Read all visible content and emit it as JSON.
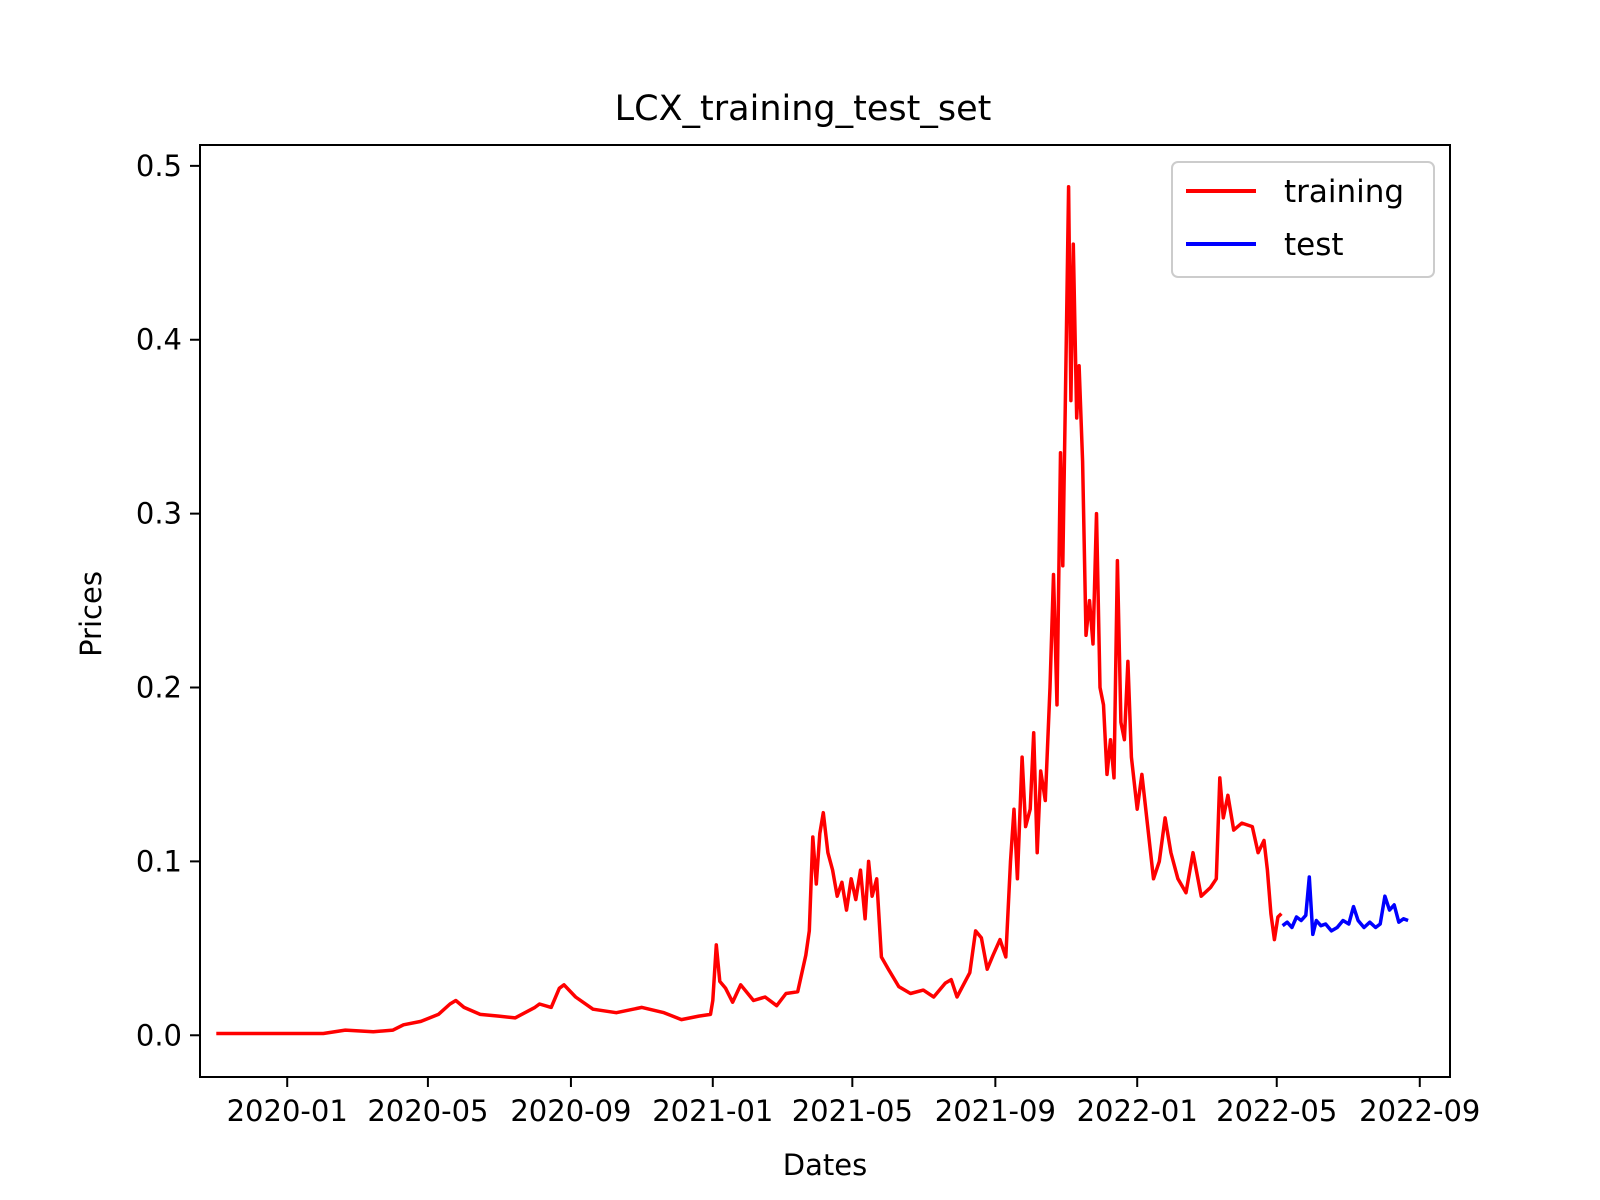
{
  "chart_data": {
    "type": "line",
    "title": "LCX_training_test_set",
    "xlabel": "Dates",
    "ylabel": "Prices",
    "xlim": [
      "2019-10-18",
      "2022-09-27"
    ],
    "ylim": [
      -0.024,
      0.512
    ],
    "grid": false,
    "legend_position": "top-right",
    "x_ticks": [
      {
        "date": "2020-01-01",
        "label": "2020-01"
      },
      {
        "date": "2020-05-01",
        "label": "2020-05"
      },
      {
        "date": "2020-09-01",
        "label": "2020-09"
      },
      {
        "date": "2021-01-01",
        "label": "2021-01"
      },
      {
        "date": "2021-05-01",
        "label": "2021-05"
      },
      {
        "date": "2021-09-01",
        "label": "2021-09"
      },
      {
        "date": "2022-01-01",
        "label": "2022-01"
      },
      {
        "date": "2022-05-01",
        "label": "2022-05"
      },
      {
        "date": "2022-09-01",
        "label": "2022-09"
      }
    ],
    "y_ticks": [
      {
        "value": 0.0,
        "label": "0.0"
      },
      {
        "value": 0.1,
        "label": "0.1"
      },
      {
        "value": 0.2,
        "label": "0.2"
      },
      {
        "value": 0.3,
        "label": "0.3"
      },
      {
        "value": 0.4,
        "label": "0.4"
      },
      {
        "value": 0.5,
        "label": "0.5"
      }
    ],
    "series": [
      {
        "name": "training",
        "color": "#ff0000",
        "points": [
          [
            "2019-11-01",
            0.001
          ],
          [
            "2019-12-01",
            0.001
          ],
          [
            "2020-01-01",
            0.001
          ],
          [
            "2020-02-01",
            0.001
          ],
          [
            "2020-02-20",
            0.003
          ],
          [
            "2020-03-15",
            0.002
          ],
          [
            "2020-04-01",
            0.003
          ],
          [
            "2020-04-10",
            0.006
          ],
          [
            "2020-04-25",
            0.008
          ],
          [
            "2020-05-10",
            0.012
          ],
          [
            "2020-05-20",
            0.018
          ],
          [
            "2020-05-25",
            0.02
          ],
          [
            "2020-06-01",
            0.016
          ],
          [
            "2020-06-15",
            0.012
          ],
          [
            "2020-07-01",
            0.011
          ],
          [
            "2020-07-15",
            0.01
          ],
          [
            "2020-08-01",
            0.016
          ],
          [
            "2020-08-05",
            0.018
          ],
          [
            "2020-08-15",
            0.016
          ],
          [
            "2020-08-22",
            0.027
          ],
          [
            "2020-08-26",
            0.029
          ],
          [
            "2020-09-05",
            0.022
          ],
          [
            "2020-09-20",
            0.015
          ],
          [
            "2020-10-10",
            0.013
          ],
          [
            "2020-11-01",
            0.016
          ],
          [
            "2020-11-20",
            0.013
          ],
          [
            "2020-12-05",
            0.009
          ],
          [
            "2020-12-20",
            0.011
          ],
          [
            "2020-12-30",
            0.012
          ],
          [
            "2021-01-01",
            0.02
          ],
          [
            "2021-01-04",
            0.052
          ],
          [
            "2021-01-07",
            0.031
          ],
          [
            "2021-01-12",
            0.027
          ],
          [
            "2021-01-18",
            0.019
          ],
          [
            "2021-01-25",
            0.029
          ],
          [
            "2021-02-05",
            0.02
          ],
          [
            "2021-02-15",
            0.022
          ],
          [
            "2021-02-25",
            0.017
          ],
          [
            "2021-03-05",
            0.024
          ],
          [
            "2021-03-15",
            0.025
          ],
          [
            "2021-03-22",
            0.046
          ],
          [
            "2021-03-25",
            0.06
          ],
          [
            "2021-03-28",
            0.114
          ],
          [
            "2021-03-31",
            0.087
          ],
          [
            "2021-04-03",
            0.116
          ],
          [
            "2021-04-06",
            0.128
          ],
          [
            "2021-04-10",
            0.105
          ],
          [
            "2021-04-14",
            0.095
          ],
          [
            "2021-04-18",
            0.08
          ],
          [
            "2021-04-22",
            0.088
          ],
          [
            "2021-04-26",
            0.072
          ],
          [
            "2021-04-30",
            0.09
          ],
          [
            "2021-05-04",
            0.078
          ],
          [
            "2021-05-08",
            0.095
          ],
          [
            "2021-05-12",
            0.067
          ],
          [
            "2021-05-15",
            0.1
          ],
          [
            "2021-05-18",
            0.08
          ],
          [
            "2021-05-22",
            0.09
          ],
          [
            "2021-05-26",
            0.045
          ],
          [
            "2021-06-01",
            0.038
          ],
          [
            "2021-06-10",
            0.028
          ],
          [
            "2021-06-20",
            0.024
          ],
          [
            "2021-07-01",
            0.026
          ],
          [
            "2021-07-10",
            0.022
          ],
          [
            "2021-07-20",
            0.03
          ],
          [
            "2021-07-25",
            0.032
          ],
          [
            "2021-07-30",
            0.022
          ],
          [
            "2021-08-10",
            0.036
          ],
          [
            "2021-08-15",
            0.06
          ],
          [
            "2021-08-20",
            0.056
          ],
          [
            "2021-08-25",
            0.038
          ],
          [
            "2021-08-30",
            0.046
          ],
          [
            "2021-09-05",
            0.055
          ],
          [
            "2021-09-10",
            0.045
          ],
          [
            "2021-09-14",
            0.1
          ],
          [
            "2021-09-17",
            0.13
          ],
          [
            "2021-09-20",
            0.09
          ],
          [
            "2021-09-24",
            0.16
          ],
          [
            "2021-09-27",
            0.12
          ],
          [
            "2021-10-01",
            0.13
          ],
          [
            "2021-10-04",
            0.174
          ],
          [
            "2021-10-07",
            0.105
          ],
          [
            "2021-10-10",
            0.152
          ],
          [
            "2021-10-14",
            0.135
          ],
          [
            "2021-10-18",
            0.2
          ],
          [
            "2021-10-21",
            0.265
          ],
          [
            "2021-10-24",
            0.19
          ],
          [
            "2021-10-27",
            0.335
          ],
          [
            "2021-10-29",
            0.27
          ],
          [
            "2021-11-01",
            0.4
          ],
          [
            "2021-11-03",
            0.488
          ],
          [
            "2021-11-05",
            0.365
          ],
          [
            "2021-11-07",
            0.455
          ],
          [
            "2021-11-10",
            0.355
          ],
          [
            "2021-11-12",
            0.385
          ],
          [
            "2021-11-15",
            0.33
          ],
          [
            "2021-11-18",
            0.23
          ],
          [
            "2021-11-21",
            0.25
          ],
          [
            "2021-11-24",
            0.225
          ],
          [
            "2021-11-27",
            0.3
          ],
          [
            "2021-11-30",
            0.2
          ],
          [
            "2021-12-03",
            0.19
          ],
          [
            "2021-12-06",
            0.15
          ],
          [
            "2021-12-09",
            0.17
          ],
          [
            "2021-12-12",
            0.148
          ],
          [
            "2021-12-15",
            0.273
          ],
          [
            "2021-12-18",
            0.18
          ],
          [
            "2021-12-21",
            0.17
          ],
          [
            "2021-12-24",
            0.215
          ],
          [
            "2021-12-27",
            0.16
          ],
          [
            "2022-01-01",
            0.13
          ],
          [
            "2022-01-05",
            0.15
          ],
          [
            "2022-01-10",
            0.12
          ],
          [
            "2022-01-15",
            0.09
          ],
          [
            "2022-01-20",
            0.1
          ],
          [
            "2022-01-25",
            0.125
          ],
          [
            "2022-01-30",
            0.105
          ],
          [
            "2022-02-05",
            0.09
          ],
          [
            "2022-02-12",
            0.082
          ],
          [
            "2022-02-18",
            0.105
          ],
          [
            "2022-02-25",
            0.08
          ],
          [
            "2022-03-05",
            0.085
          ],
          [
            "2022-03-10",
            0.09
          ],
          [
            "2022-03-13",
            0.148
          ],
          [
            "2022-03-16",
            0.125
          ],
          [
            "2022-03-20",
            0.138
          ],
          [
            "2022-03-25",
            0.118
          ],
          [
            "2022-04-01",
            0.122
          ],
          [
            "2022-04-10",
            0.12
          ],
          [
            "2022-04-15",
            0.105
          ],
          [
            "2022-04-20",
            0.112
          ],
          [
            "2022-04-23",
            0.095
          ],
          [
            "2022-04-26",
            0.07
          ],
          [
            "2022-04-29",
            0.055
          ],
          [
            "2022-05-02",
            0.068
          ],
          [
            "2022-05-05",
            0.07
          ]
        ]
      },
      {
        "name": "test",
        "color": "#0000ff",
        "points": [
          [
            "2022-05-06",
            0.063
          ],
          [
            "2022-05-10",
            0.065
          ],
          [
            "2022-05-14",
            0.062
          ],
          [
            "2022-05-18",
            0.068
          ],
          [
            "2022-05-22",
            0.066
          ],
          [
            "2022-05-26",
            0.069
          ],
          [
            "2022-05-29",
            0.091
          ],
          [
            "2022-06-01",
            0.058
          ],
          [
            "2022-06-04",
            0.066
          ],
          [
            "2022-06-08",
            0.063
          ],
          [
            "2022-06-12",
            0.064
          ],
          [
            "2022-06-17",
            0.06
          ],
          [
            "2022-06-22",
            0.062
          ],
          [
            "2022-06-27",
            0.066
          ],
          [
            "2022-07-02",
            0.064
          ],
          [
            "2022-07-06",
            0.074
          ],
          [
            "2022-07-10",
            0.066
          ],
          [
            "2022-07-15",
            0.062
          ],
          [
            "2022-07-20",
            0.065
          ],
          [
            "2022-07-25",
            0.062
          ],
          [
            "2022-07-29",
            0.064
          ],
          [
            "2022-08-02",
            0.08
          ],
          [
            "2022-08-06",
            0.072
          ],
          [
            "2022-08-10",
            0.075
          ],
          [
            "2022-08-14",
            0.065
          ],
          [
            "2022-08-18",
            0.067
          ],
          [
            "2022-08-22",
            0.066
          ]
        ]
      }
    ]
  }
}
